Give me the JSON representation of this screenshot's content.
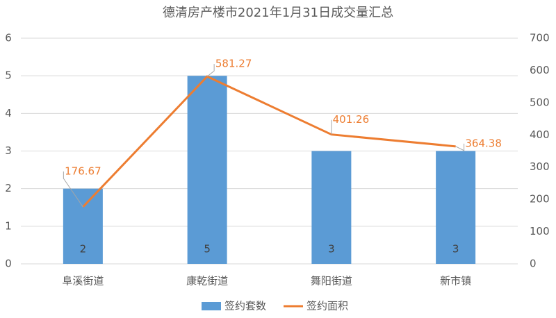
{
  "chart_data": {
    "type": "combo",
    "title": "德清房产楼市2021年1月31日成交量汇总",
    "categories": [
      "阜溪街道",
      "康乾街道",
      "舞阳街道",
      "新市镇"
    ],
    "series": [
      {
        "name": "签约套数",
        "type": "bar",
        "color": "#5b9bd5",
        "values": [
          2,
          5,
          3,
          3
        ]
      },
      {
        "name": "签约面积",
        "type": "line",
        "axis": "y2",
        "color": "#ed7d31",
        "values": [
          176.67,
          581.27,
          401.26,
          364.38
        ]
      }
    ],
    "ylim": [
      0,
      6
    ],
    "yticks": [
      0,
      1,
      2,
      3,
      4,
      5,
      6
    ],
    "y2lim": [
      0,
      700
    ],
    "y2ticks": [
      0,
      100,
      200,
      300,
      400,
      500,
      600,
      700
    ],
    "grid": true,
    "legend": "bottom"
  }
}
